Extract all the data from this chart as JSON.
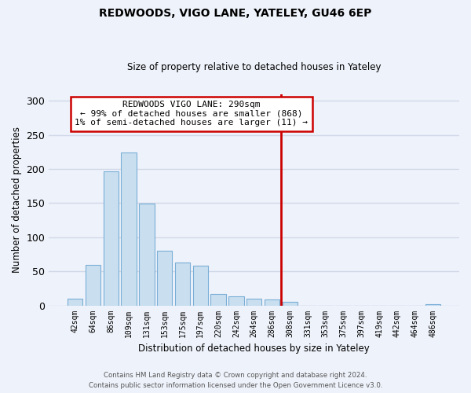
{
  "title": "REDWOODS, VIGO LANE, YATELEY, GU46 6EP",
  "subtitle": "Size of property relative to detached houses in Yateley",
  "xlabel": "Distribution of detached houses by size in Yateley",
  "ylabel": "Number of detached properties",
  "bar_labels": [
    "42sqm",
    "64sqm",
    "86sqm",
    "109sqm",
    "131sqm",
    "153sqm",
    "175sqm",
    "197sqm",
    "220sqm",
    "242sqm",
    "264sqm",
    "286sqm",
    "308sqm",
    "331sqm",
    "353sqm",
    "375sqm",
    "397sqm",
    "419sqm",
    "442sqm",
    "464sqm",
    "486sqm"
  ],
  "bar_values": [
    10,
    59,
    196,
    224,
    149,
    80,
    63,
    58,
    17,
    13,
    10,
    9,
    5,
    0,
    0,
    0,
    0,
    0,
    0,
    0,
    2
  ],
  "bar_color": "#c9dff0",
  "bar_edge_color": "#7aaed6",
  "vline_color": "#cc0000",
  "annotation_line1": "REDWOODS VIGO LANE: 290sqm",
  "annotation_line2": "← 99% of detached houses are smaller (868)",
  "annotation_line3": "1% of semi-detached houses are larger (11) →",
  "annotation_box_color": "#ffffff",
  "annotation_box_edge_color": "#cc0000",
  "ylim": [
    0,
    310
  ],
  "yticks": [
    0,
    50,
    100,
    150,
    200,
    250,
    300
  ],
  "footer_line1": "Contains HM Land Registry data © Crown copyright and database right 2024.",
  "footer_line2": "Contains public sector information licensed under the Open Government Licence v3.0.",
  "bg_color": "#eef2fa",
  "grid_color": "#d0d8e8"
}
